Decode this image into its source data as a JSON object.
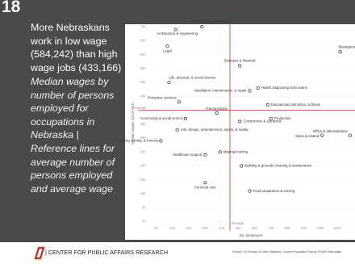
{
  "slide_number": "18",
  "headline": "More Nebraskans work in low wage (584,242) than high wage jobs (433,166)",
  "description": "Median wages by number of persons employed for occupations in Nebraska | Reference lines for average number of persons employed and average wage",
  "footer": {
    "org": "| CENTER FOR PUBLIC AFFAIRS RESEARCH",
    "source": "Source: US Bureau of Labor Statistics, Current Population Survey, IPUMS Microdata"
  },
  "chart_data": {
    "type": "scatter",
    "x_label": "No. Employed",
    "y_label": "Median wages (2018 ADJ)",
    "point_labels": [
      "Computer & mathematical",
      "Architecture & engineering",
      "Legal",
      "Management",
      "Business & financial",
      "Life, physical, & social science",
      "Health diagnosing technicians",
      "Installation, maintenance, & repair",
      "Protective services",
      "Educational instruction, & library",
      "Transportation",
      "Community & social service",
      "Production",
      "Construction & extraction",
      "Arts, design, entertainment, sports, & media",
      "Office & administrative",
      "Sales & related",
      "Farming, fishing, & forestry",
      "Material moving",
      "Healthcare support",
      "Building & grounds cleaning & maintenance",
      "Personal care",
      "Food preparation & serving"
    ],
    "x": [
      28000,
      12000,
      7000,
      112000,
      51000,
      8000,
      62000,
      57000,
      14000,
      68000,
      37000,
      18000,
      70000,
      51000,
      13000,
      118000,
      101000,
      3000,
      39000,
      30000,
      52000,
      30000,
      57000
    ],
    "values": [
      70000,
      69000,
      63000,
      61000,
      56000,
      50000,
      48000,
      47000,
      43000,
      42000,
      39000,
      37000,
      37000,
      36000,
      33000,
      31000,
      31000,
      29000,
      25000,
      24000,
      20000,
      14000,
      11000
    ],
    "color": "#333333",
    "xlim": [
      -5000,
      121000
    ],
    "ylim": [
      -1000,
      71500
    ],
    "xticks": [
      {
        "value": 0,
        "label": "0K"
      },
      {
        "value": 10000,
        "label": "10K"
      },
      {
        "value": 20000,
        "label": "20K"
      },
      {
        "value": 30000,
        "label": "30K"
      },
      {
        "value": 40000,
        "label": "40K"
      },
      {
        "value": 50000,
        "label": "50K"
      },
      {
        "value": 60000,
        "label": "60K"
      },
      {
        "value": 70000,
        "label": "70K"
      },
      {
        "value": 80000,
        "label": "80K"
      },
      {
        "value": 90000,
        "label": "90K"
      },
      {
        "value": 100000,
        "label": "100K"
      },
      {
        "value": 110000,
        "label": "110K"
      }
    ],
    "yticks": [
      {
        "value": 0,
        "label": "0K"
      },
      {
        "value": 5000,
        "label": "5K"
      },
      {
        "value": 10000,
        "label": "10K"
      },
      {
        "value": 15000,
        "label": "15K"
      },
      {
        "value": 20000,
        "label": "20K"
      },
      {
        "value": 25000,
        "label": "25K"
      },
      {
        "value": 30000,
        "label": "30K"
      },
      {
        "value": 35000,
        "label": "35K"
      },
      {
        "value": 45000,
        "label": "45K"
      },
      {
        "value": 50000,
        "label": "50K"
      },
      {
        "value": 55000,
        "label": "55K"
      },
      {
        "value": 60000,
        "label": "60K"
      },
      {
        "value": 65000,
        "label": "65K"
      },
      {
        "value": 70000,
        "label": "70K"
      }
    ],
    "reference_lines": [
      {
        "axis": "x",
        "value": 45000,
        "label": "Average"
      },
      {
        "axis": "y",
        "value": 40000,
        "label": "Average"
      }
    ],
    "reference_color": "#c0392b"
  }
}
